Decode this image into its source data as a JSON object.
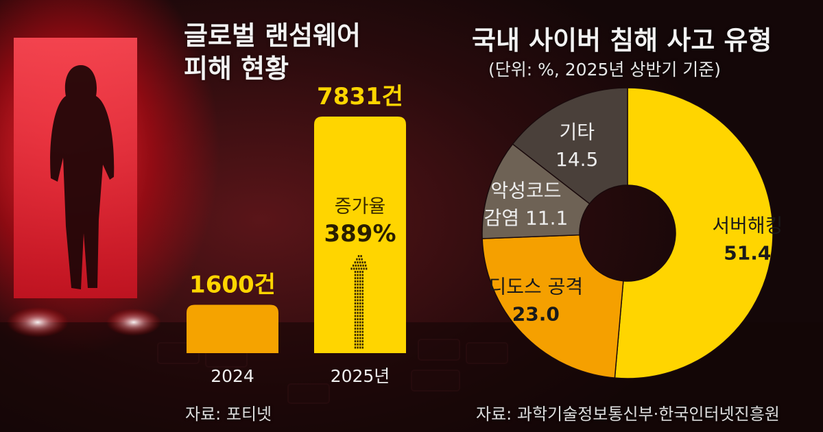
{
  "left_panel": {
    "title_line1": "글로벌 랜섬웨어",
    "title_line2": "피해 현황",
    "source": "자료: 포티넷"
  },
  "right_panel": {
    "title": "국내 사이버 침해 사고 유형",
    "subtitle": "(단위: %, 2025년 상반기 기준)",
    "source": "자료: 과학기술정보통신부·한국인터넷진흥원"
  },
  "colors": {
    "bar_2024": "#F5A300",
    "bar_2025": "#FFD500",
    "slice_server": "#FFD500",
    "slice_ddos": "#F5A000",
    "slice_malware": "#6E6255",
    "slice_other": "#4A403A",
    "value_label": "#FFD500"
  },
  "chart_data": [
    {
      "type": "bar",
      "categories": [
        "2024",
        "2025년"
      ],
      "values": [
        1600,
        7831
      ],
      "value_labels": [
        "1600건",
        "7831건"
      ],
      "annotation": {
        "label": "증가율",
        "value": "389%"
      },
      "xlabel": "",
      "ylabel": ""
    },
    {
      "type": "pie",
      "variant": "donut",
      "labels": [
        "서버해킹",
        "디도스 공격",
        "악성코드 감염",
        "기타"
      ],
      "values": [
        51.4,
        23.0,
        11.1,
        14.5
      ],
      "value_labels": [
        "51.4",
        "23.0",
        "11.1",
        "14.5"
      ]
    }
  ]
}
